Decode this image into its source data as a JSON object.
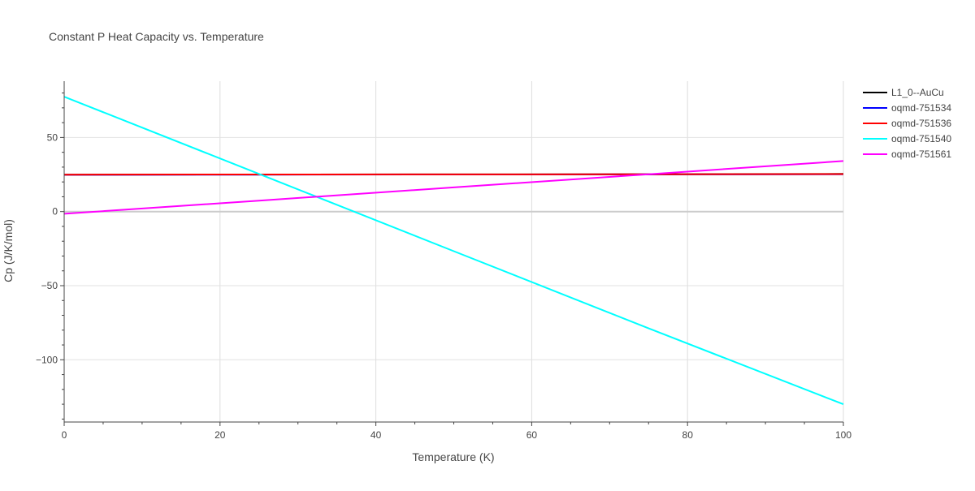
{
  "chart_data": {
    "type": "line",
    "title": "Constant P Heat Capacity vs. Temperature",
    "xlabel": "Temperature (K)",
    "ylabel": "Cp (J/K/mol)",
    "xlim": [
      0,
      100
    ],
    "ylim": [
      -142,
      88
    ],
    "x_ticks": [
      0,
      20,
      40,
      60,
      80,
      100
    ],
    "x_tick_labels": [
      "0",
      "20",
      "40",
      "60",
      "80",
      "100"
    ],
    "y_ticks": [
      50,
      0,
      -50,
      -100
    ],
    "y_tick_labels": [
      "50",
      "0",
      "−50",
      "−100"
    ],
    "grid": true,
    "legend_position": "right",
    "series": [
      {
        "name": "L1_0--AuCu",
        "color": "#000000",
        "x": [
          0,
          25,
          50,
          75,
          100
        ],
        "y": [
          24.9,
          25.0,
          25.1,
          25.2,
          25.4
        ]
      },
      {
        "name": "oqmd-751534",
        "color": "#0000ff",
        "x": [
          0,
          25,
          50,
          75,
          100
        ],
        "y": [
          24.8,
          24.9,
          25.0,
          25.1,
          25.2
        ]
      },
      {
        "name": "oqmd-751536",
        "color": "#ff0000",
        "x": [
          0,
          25,
          50,
          75,
          100
        ],
        "y": [
          24.9,
          25.0,
          25.1,
          25.2,
          25.3
        ]
      },
      {
        "name": "oqmd-751540",
        "color": "#00ffff",
        "x": [
          0,
          25,
          50,
          75,
          100
        ],
        "y": [
          77.5,
          25.4,
          -26.7,
          -78.8,
          -130.0
        ]
      },
      {
        "name": "oqmd-751561",
        "color": "#ff00ff",
        "x": [
          0,
          25,
          50,
          75,
          100
        ],
        "y": [
          -1.5,
          7.4,
          16.3,
          25.2,
          34.1
        ]
      }
    ]
  }
}
